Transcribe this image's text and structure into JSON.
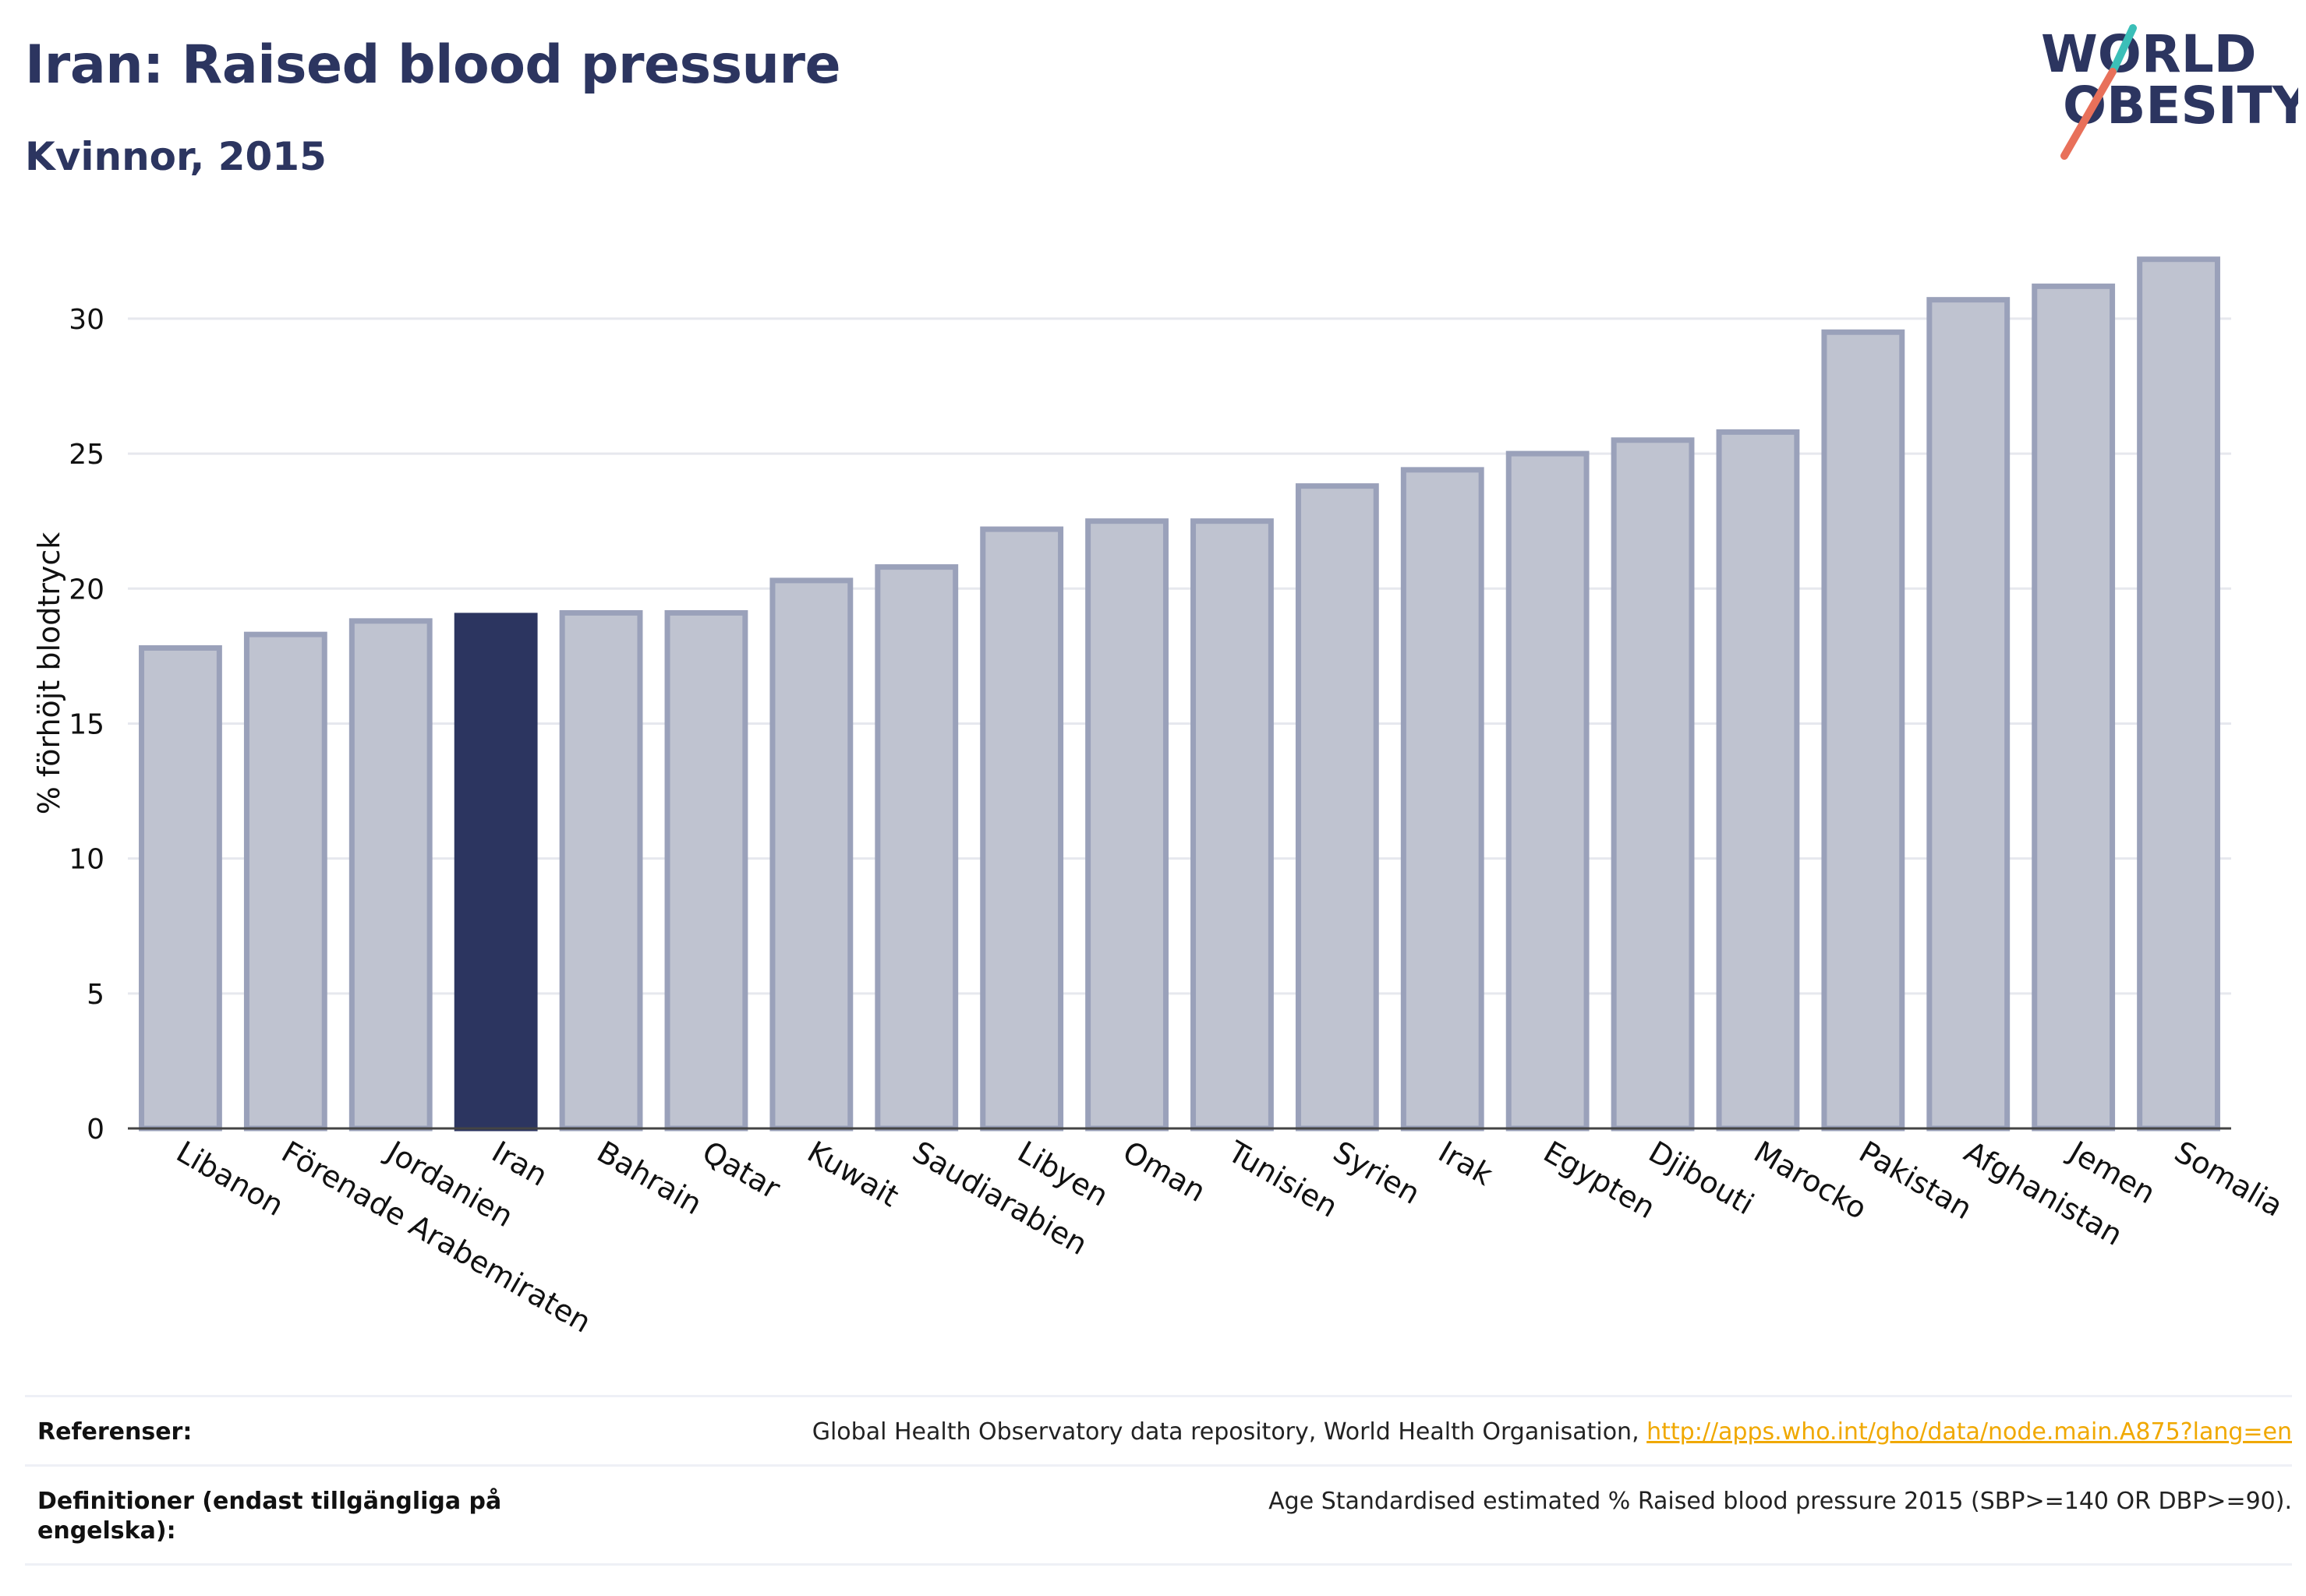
{
  "header": {
    "title": "Iran: Raised blood pressure",
    "subtitle": "Kvinnor, 2015"
  },
  "logo": {
    "line1": "WORLD",
    "line2": "OBESITY",
    "accent_teal": "#3bbfb8",
    "accent_coral": "#e8705a",
    "text_color": "#2c3560"
  },
  "chart_data": {
    "type": "bar",
    "title": "Iran: Raised blood pressure",
    "subtitle": "Kvinnor, 2015",
    "xlabel": "",
    "ylabel": "% förhöjt blodtryck",
    "ylim": [
      0,
      33
    ],
    "yticks": [
      0,
      5,
      10,
      15,
      20,
      25,
      30
    ],
    "grid": true,
    "highlight": "Iran",
    "colors": {
      "bar": "#bfc3d0",
      "bar_edge": "#9aa1ba",
      "highlight": "#2c3560"
    },
    "categories": [
      "Libanon",
      "Förenade Arabemiraten",
      "Jordanien",
      "Iran",
      "Bahrain",
      "Qatar",
      "Kuwait",
      "Saudiarabien",
      "Libyen",
      "Oman",
      "Tunisien",
      "Syrien",
      "Irak",
      "Egypten",
      "Djibouti",
      "Marocko",
      "Pakistan",
      "Afghanistan",
      "Jemen",
      "Somalia"
    ],
    "values": [
      17.8,
      18.3,
      18.8,
      19.0,
      19.1,
      19.1,
      20.3,
      20.8,
      22.2,
      22.5,
      22.5,
      23.8,
      24.4,
      25.0,
      25.5,
      25.8,
      29.5,
      30.7,
      31.2,
      32.2
    ]
  },
  "footer": {
    "references_label": "Referenser:",
    "references_text": "Global Health Observatory data repository, World Health Organisation, ",
    "references_link": "http://apps.who.int/gho/data/node.main.A875?lang=en",
    "definitions_label": "Definitioner (endast tillgängliga på engelska):",
    "definitions_text": "Age Standardised estimated % Raised blood pressure 2015 (SBP>=140 OR DBP>=90)."
  }
}
